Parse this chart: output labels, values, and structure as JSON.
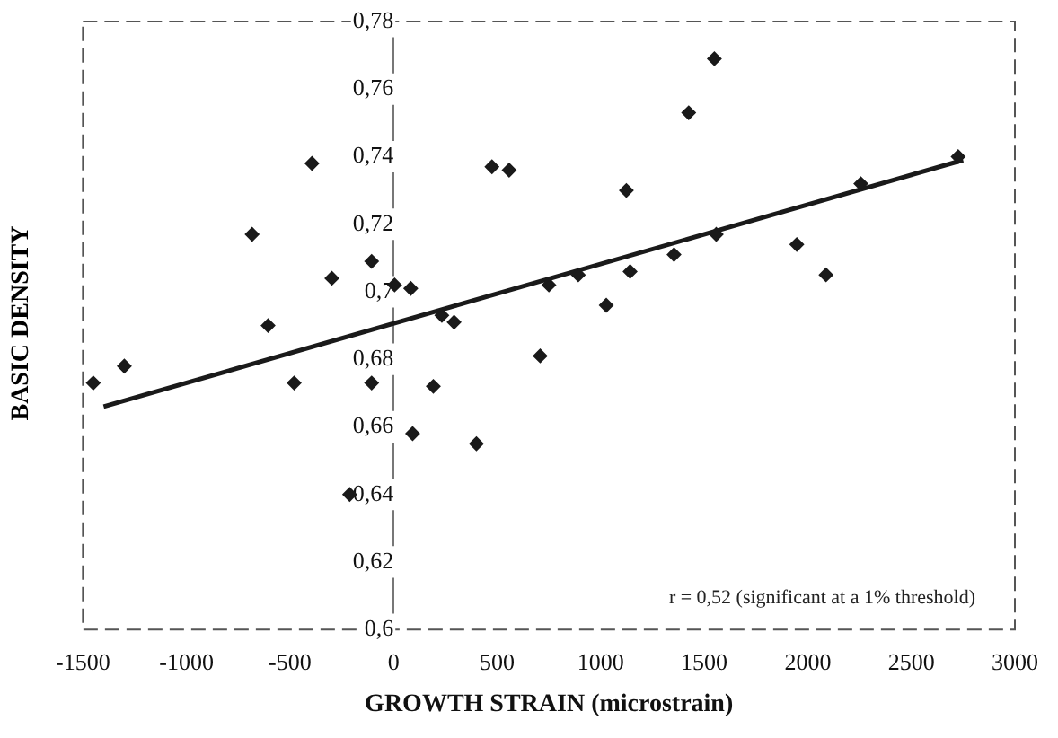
{
  "chart_data": {
    "type": "scatter",
    "xlabel": "GROWTH STRAIN (microstrain)",
    "ylabel": "BASIC DENSITY",
    "annotations": [
      "r = 0,52 (significant at a 1% threshold)"
    ],
    "xlim": [
      -1500,
      3000
    ],
    "xticks": [
      -1500,
      -1000,
      -500,
      0,
      500,
      1000,
      1500,
      2000,
      2500,
      3000
    ],
    "ylim": [
      0.6,
      0.78
    ],
    "yticks": [
      {
        "value": 0.6,
        "label": "0,6"
      },
      {
        "value": 0.62,
        "label": "0,62"
      },
      {
        "value": 0.64,
        "label": "0,64"
      },
      {
        "value": 0.66,
        "label": "0,66"
      },
      {
        "value": 0.68,
        "label": "0,68"
      },
      {
        "value": 0.7,
        "label": "0,7"
      },
      {
        "value": 0.72,
        "label": "0,72"
      },
      {
        "value": 0.74,
        "label": "0,74"
      },
      {
        "value": 0.76,
        "label": "0,76"
      },
      {
        "value": 0.78,
        "label": "0,78"
      }
    ],
    "grid": false,
    "legend": false,
    "series": [
      {
        "marker": "diamond",
        "color": "#1a1a1a",
        "x": [
          -1450,
          -1300,
          -683,
          -606,
          -480,
          -394,
          -298,
          -212,
          -106,
          -106,
          5,
          83,
          92,
          192,
          233,
          292,
          400,
          475,
          558,
          708,
          750,
          892,
          1027,
          1124,
          1142,
          1354,
          1425,
          1549,
          1558,
          1947,
          2088,
          2256,
          2726
        ],
        "values": [
          0.673,
          0.678,
          0.717,
          0.69,
          0.673,
          0.738,
          0.704,
          0.64,
          0.709,
          0.673,
          0.702,
          0.701,
          0.658,
          0.672,
          0.693,
          0.691,
          0.655,
          0.737,
          0.736,
          0.681,
          0.702,
          0.705,
          0.696,
          0.73,
          0.706,
          0.711,
          0.753,
          0.769,
          0.717,
          0.714,
          0.705,
          0.732,
          0.74
        ]
      },
      {
        "type": "line",
        "color": "#1a1a1a",
        "x": [
          -1400,
          2750
        ],
        "values": [
          0.666,
          0.739
        ]
      }
    ]
  }
}
